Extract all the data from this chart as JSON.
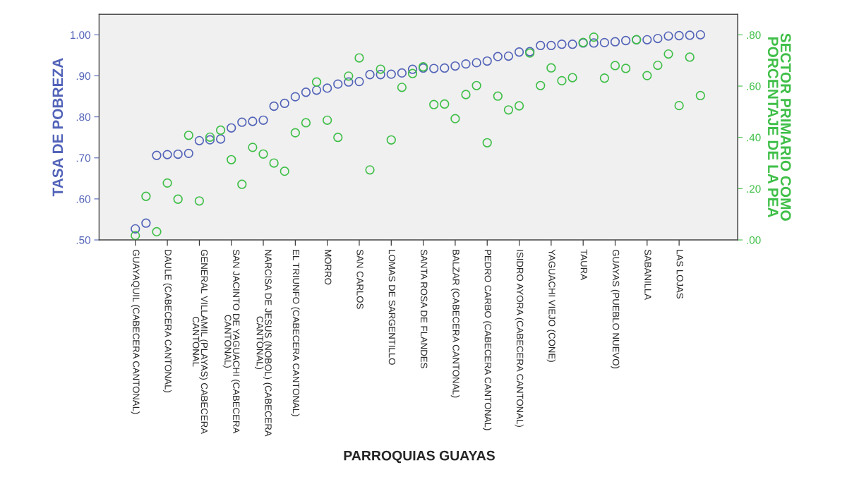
{
  "chart_data": {
    "type": "scatter",
    "xlabel": "PARROQUIAS GUAYAS",
    "ylabel": "TASA DE POBREZA",
    "y2label": "SECTOR PRIMARIO COMO\nPORCENTAJE DE LA PEA",
    "categories": [
      "GUAYAQUIL (CABECERA CANTONAL)",
      null,
      null,
      "DAULE (CABECERA CANTONAL)",
      null,
      null,
      "GENERAL VILLAMIL (PLAYAS) CABECERA\nCANTONAL",
      null,
      null,
      "SAN JACINTO DE YAGUACHI (CABECERA\nCANTONAL)",
      null,
      null,
      "NARCISA DE JESUS (NOBOL) (CABECERA\nCANTONAL)",
      null,
      null,
      "EL TRIUNFO (CABECERA CANTONAL)",
      null,
      null,
      "MORRO",
      null,
      null,
      "SAN CARLOS",
      null,
      null,
      "LOMAS DE SARGENTILLO",
      null,
      null,
      "SANTA ROSA DE FLANDES",
      null,
      null,
      "BALZAR (CABECERA CANTONAL)",
      null,
      null,
      "PEDRO CARBO (CABECERA CANTONAL)",
      null,
      null,
      "ISIDRO AYORA (CABECERA CANTONAL)",
      null,
      null,
      "YAGUACHI VIEJO (CONE)",
      null,
      null,
      "TAURA",
      null,
      null,
      "GUAYAS (PUEBLO NUEVO)",
      null,
      null,
      "SABANILLA",
      null,
      null,
      "LAS LOJAS",
      null,
      null
    ],
    "series": [
      {
        "color": "#5263b8",
        "values": [
          0.527,
          0.541,
          0.706,
          0.708,
          0.709,
          0.711,
          0.742,
          0.744,
          0.746,
          0.773,
          0.787,
          0.789,
          0.792,
          0.826,
          0.833,
          0.849,
          0.86,
          0.865,
          0.87,
          0.88,
          0.885,
          0.886,
          0.903,
          0.903,
          0.904,
          0.907,
          0.916,
          0.919,
          0.918,
          0.919,
          0.924,
          0.929,
          0.932,
          0.936,
          0.947,
          0.948,
          0.958,
          0.959,
          0.974,
          0.974,
          0.977,
          0.977,
          0.98,
          0.98,
          0.981,
          0.983,
          0.986,
          0.988,
          0.988,
          0.991,
          0.997,
          0.998,
          0.999,
          1.0
        ]
      },
      {
        "color": "#3fbf48",
        "axis": "y2",
        "values": [
          0.017,
          0.17,
          0.032,
          0.222,
          0.159,
          0.408,
          0.152,
          0.401,
          0.428,
          0.313,
          0.217,
          0.361,
          0.335,
          0.3,
          0.268,
          0.418,
          0.457,
          0.616,
          0.467,
          0.4,
          0.639,
          0.71,
          0.273,
          0.666,
          0.39,
          0.595,
          0.649,
          0.675,
          0.528,
          0.53,
          0.473,
          0.567,
          0.602,
          0.379,
          0.561,
          0.507,
          0.523,
          0.729,
          0.602,
          0.671,
          0.621,
          0.633,
          0.77,
          0.791,
          0.631,
          0.68,
          0.669,
          0.781,
          0.641,
          0.681,
          0.725,
          0.524,
          0.713,
          0.563
        ]
      }
    ],
    "ylim": [
      0.5,
      1.05
    ],
    "yticks": [
      {
        "value": 0.5,
        "label": ".50"
      },
      {
        "value": 0.6,
        "label": ".60"
      },
      {
        "value": 0.7,
        "label": ".70"
      },
      {
        "value": 0.8,
        "label": ".80"
      },
      {
        "value": 0.9,
        "label": ".90"
      },
      {
        "value": 1.0,
        "label": "1.00"
      }
    ],
    "y2lim": [
      0,
      0.88
    ],
    "y2ticks": [
      {
        "value": 0,
        "label": ".00"
      },
      {
        "value": 0.2,
        "label": ".20"
      },
      {
        "value": 0.4,
        "label": ".40"
      },
      {
        "value": 0.6,
        "label": ".60"
      },
      {
        "value": 0.8,
        "label": ".80"
      }
    ],
    "marker": "circle",
    "grid": false,
    "legend": false
  }
}
